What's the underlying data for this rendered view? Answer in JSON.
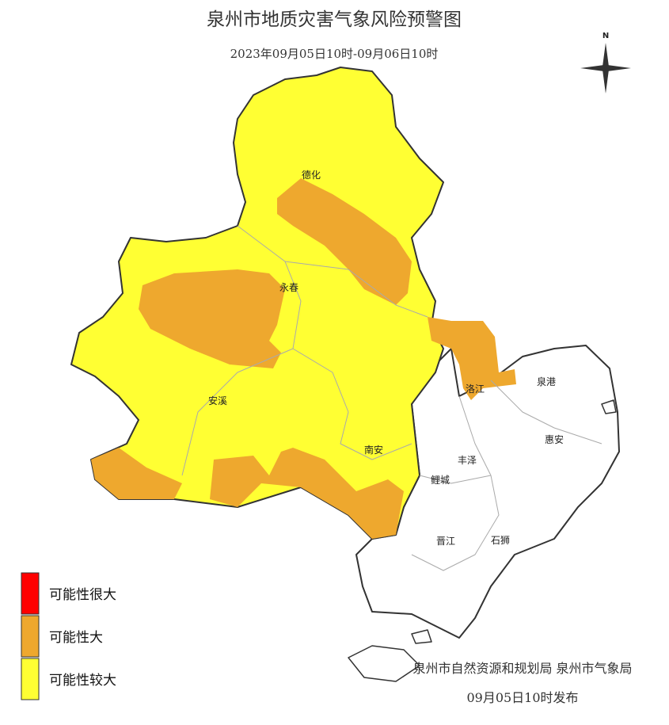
{
  "header": {
    "title": "泉州市地质灾害气象风险预警图",
    "subtitle": "2023年09月05日10时-09月06日10时"
  },
  "compass": {
    "label": "N"
  },
  "places": [
    {
      "label": "德化"
    },
    {
      "label": "永春"
    },
    {
      "label": "安溪"
    },
    {
      "label": "南安"
    },
    {
      "label": "洛江"
    },
    {
      "label": "泉港"
    },
    {
      "label": "惠安"
    },
    {
      "label": "丰泽"
    },
    {
      "label": "鲤城"
    },
    {
      "label": "晋江"
    },
    {
      "label": "石狮"
    }
  ],
  "legend": {
    "items": [
      {
        "label": "可能性很大",
        "color": "#ff0000"
      },
      {
        "label": "可能性大",
        "color": "#eea82e"
      },
      {
        "label": "可能性较大",
        "color": "#ffff33"
      }
    ]
  },
  "footer": {
    "issuer": "泉州市自然资源和规划局 泉州市气象局",
    "time": "09月05日10时发布"
  }
}
